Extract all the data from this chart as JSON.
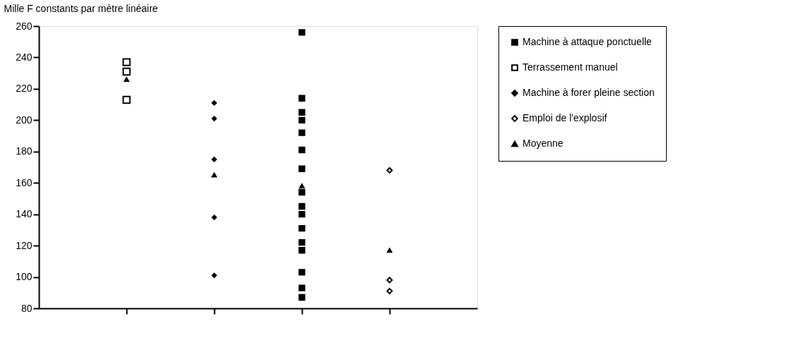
{
  "chart_data": {
    "type": "scatter",
    "ylabel": "Mille F constants par mètre linéaire",
    "categories": [
      null,
      null,
      null,
      null
    ],
    "series": [
      {
        "name": "Machine à attaque ponctuelle",
        "color": "#000000",
        "marker": "square",
        "values": [
          null,
          null,
          256,
          null
        ]
      },
      {
        "values": [
          null,
          null,
          214,
          null
        ]
      },
      {
        "values": [
          null,
          null,
          205,
          null
        ]
      },
      {
        "values": [
          null,
          null,
          200,
          null
        ]
      },
      {
        "values": [
          null,
          null,
          192,
          null
        ]
      },
      {
        "values": [
          null,
          null,
          181,
          null
        ]
      },
      {
        "values": [
          null,
          null,
          169,
          null
        ]
      },
      {
        "values": [
          null,
          null,
          154,
          null
        ]
      },
      {
        "values": [
          null,
          null,
          145,
          null
        ]
      },
      {
        "values": [
          null,
          null,
          140,
          null
        ]
      },
      {
        "values": [
          null,
          null,
          131,
          null
        ]
      },
      {
        "values": [
          null,
          null,
          122,
          null
        ]
      },
      {
        "values": [
          null,
          null,
          117,
          null
        ]
      },
      {
        "values": [
          null,
          null,
          103,
          null
        ]
      },
      {
        "values": [
          null,
          null,
          93,
          null
        ]
      },
      {
        "values": [
          null,
          null,
          87,
          null
        ]
      },
      {
        "name": "Terrassement manuel",
        "color": "#000000",
        "marker": "square",
        "values": [
          237,
          null,
          null,
          null
        ]
      },
      {
        "values": [
          231,
          null,
          null,
          null
        ]
      },
      {
        "values": [
          213,
          null,
          null,
          null
        ]
      },
      {
        "name": "Machine à forer pleine section",
        "color": "#000000",
        "marker": "diamond",
        "values": [
          null,
          211,
          null,
          null
        ]
      },
      {
        "values": [
          null,
          201,
          null,
          null
        ]
      },
      {
        "values": [
          null,
          175,
          null,
          null
        ]
      },
      {
        "values": [
          null,
          138,
          null,
          null
        ]
      },
      {
        "values": [
          null,
          101,
          null,
          null
        ]
      },
      {
        "name": "Emploi de l'explosif",
        "color": "#000000",
        "marker": "diamond",
        "values": [
          null,
          null,
          null,
          168
        ]
      },
      {
        "values": [
          null,
          null,
          null,
          98
        ]
      },
      {
        "values": [
          null,
          null,
          null,
          91
        ]
      },
      {
        "name": "Moyenne",
        "color": "#000000",
        "marker": "triangle",
        "values": [
          226,
          165,
          158,
          117
        ]
      }
    ],
    "ylim": [
      80,
      260
    ],
    "yticks": [
      80,
      100,
      120,
      140,
      160,
      180,
      200,
      220,
      240,
      260
    ],
    "grid": false,
    "legend": "right"
  }
}
